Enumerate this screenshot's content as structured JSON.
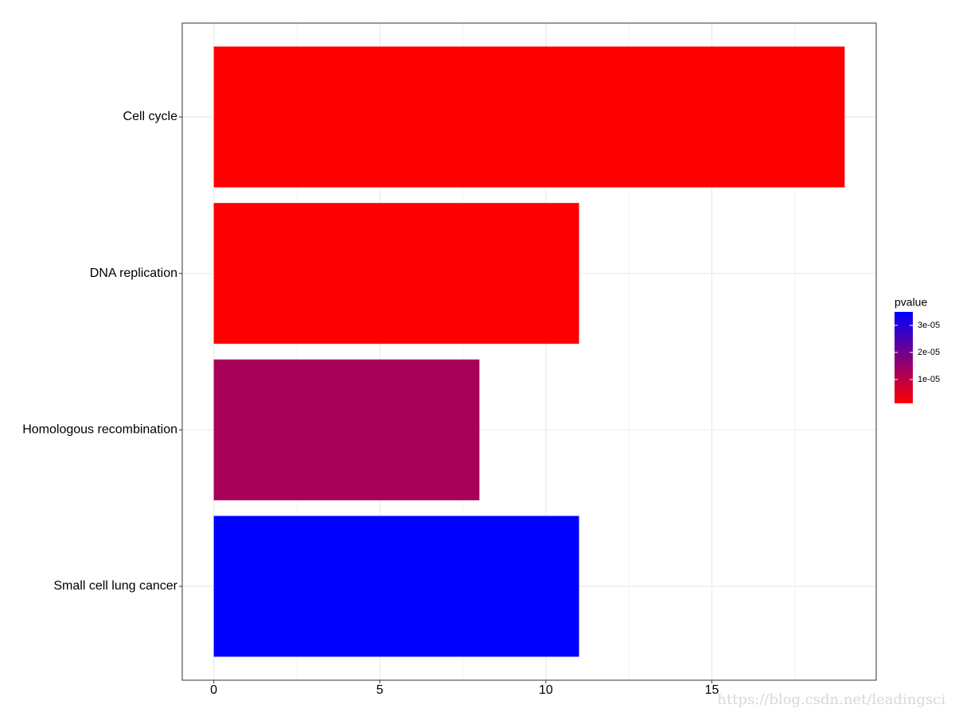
{
  "chart_data": {
    "type": "barh",
    "categories": [
      "Cell cycle",
      "DNA replication",
      "Homologous recombination",
      "Small cell lung cancer"
    ],
    "values": [
      19,
      11,
      8,
      11
    ],
    "pvalues": [
      1.2e-06,
      1.5e-06,
      1.3e-05,
      3.5e-05
    ],
    "color_low": "#ff0000",
    "color_high": "#0000ff",
    "legend_title": "pvalue",
    "legend_ticks": [
      {
        "value": 1e-05,
        "label": "1e-05"
      },
      {
        "value": 2e-05,
        "label": "2e-05"
      },
      {
        "value": 3e-05,
        "label": "3e-05"
      }
    ],
    "xlim": [
      -0.95,
      19.95
    ],
    "xticks": [
      0,
      5,
      10,
      15
    ],
    "x_minor_ticks": [
      2.5,
      7.5,
      12.5,
      17.5
    ],
    "grid": true,
    "legend_position": "right",
    "watermark": "https://blog.csdn.net/leadingsci"
  }
}
